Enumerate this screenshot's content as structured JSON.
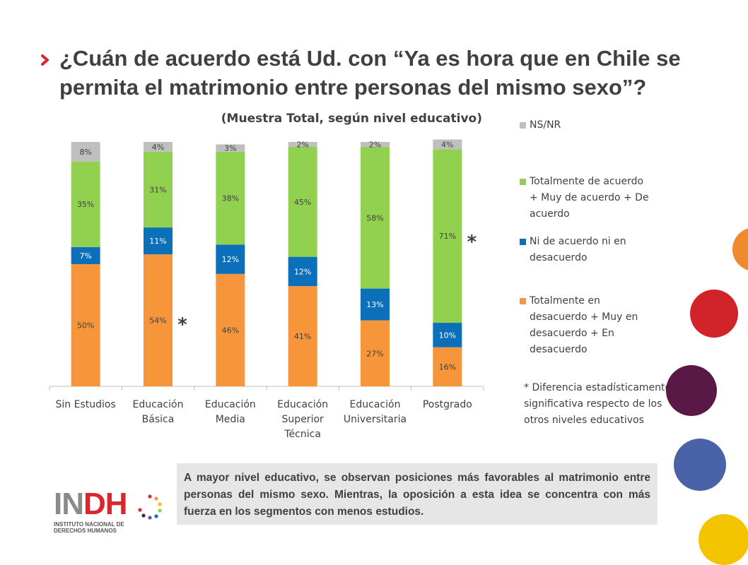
{
  "title": "¿Cuán de acuerdo está Ud. con “Ya es hora que en Chile se permita el matrimonio entre personas del mismo sexo”?",
  "chart_data": {
    "type": "bar",
    "stacked": true,
    "title": "(Muestra Total, según nivel educativo)",
    "categories": [
      [
        "Sin Estudios"
      ],
      [
        "Educación",
        "Básica"
      ],
      [
        "Educación",
        "Media"
      ],
      [
        "Educación",
        "Superior",
        "Técnica"
      ],
      [
        "Educación",
        "Universitaria"
      ],
      [
        "Postgrado"
      ]
    ],
    "series": [
      {
        "name": "Totalmente en desacuerdo + Muy en desacuerdo + En desacuerdo",
        "color": "#f7953a",
        "values": [
          50,
          54,
          46,
          41,
          27,
          16
        ]
      },
      {
        "name": "Ni de acuerdo ni en desacuerdo",
        "color": "#0b6fba",
        "values": [
          7,
          11,
          12,
          12,
          13,
          10
        ]
      },
      {
        "name": "Totalmente de acuerdo + Muy de acuerdo + De acuerdo",
        "color": "#92d050",
        "values": [
          35,
          31,
          38,
          45,
          58,
          71
        ]
      },
      {
        "name": "NS/NR",
        "color": "#bfbfbf",
        "values": [
          8,
          4,
          3,
          2,
          2,
          4
        ]
      }
    ],
    "value_suffix": "%",
    "ylim": [
      0,
      100
    ],
    "grid": false,
    "legend_position": "right",
    "significance_markers": [
      {
        "category_index": 1,
        "label": "*"
      },
      {
        "category_index": 5,
        "label": "*"
      }
    ]
  },
  "legend_items": [
    {
      "lines": [
        "NS/NR"
      ],
      "color": "#bfbfbf"
    },
    {
      "lines": [
        "Totalmente de acuerdo",
        "+ Muy de acuerdo + De",
        "acuerdo"
      ],
      "color": "#92d050"
    },
    {
      "lines": [
        "Ni de acuerdo ni en",
        "desacuerdo"
      ],
      "color": "#0b6fba"
    },
    {
      "lines": [
        "Totalmente en",
        "desacuerdo + Muy en",
        "desacuerdo + En",
        "desacuerdo"
      ],
      "color": "#f7953a"
    }
  ],
  "footnote": "* Diferencia estadísticamente significativa respecto de los otros niveles educativos",
  "note": "A mayor nivel educativo, se observan posiciones más favorables al matrimonio entre personas del mismo sexo. Mientras, la oposición a esta idea se concentra con más fuerza en los segmentos con menos estudios.",
  "logo": {
    "text_gray": "IN",
    "text_red": "DH",
    "subtitle": "INSTITUTO NACIONAL DE DERECHOS HUMANOS"
  },
  "colors": {
    "accent": "#d9272d",
    "text": "#404040",
    "note_bg": "#e6e6e6"
  }
}
